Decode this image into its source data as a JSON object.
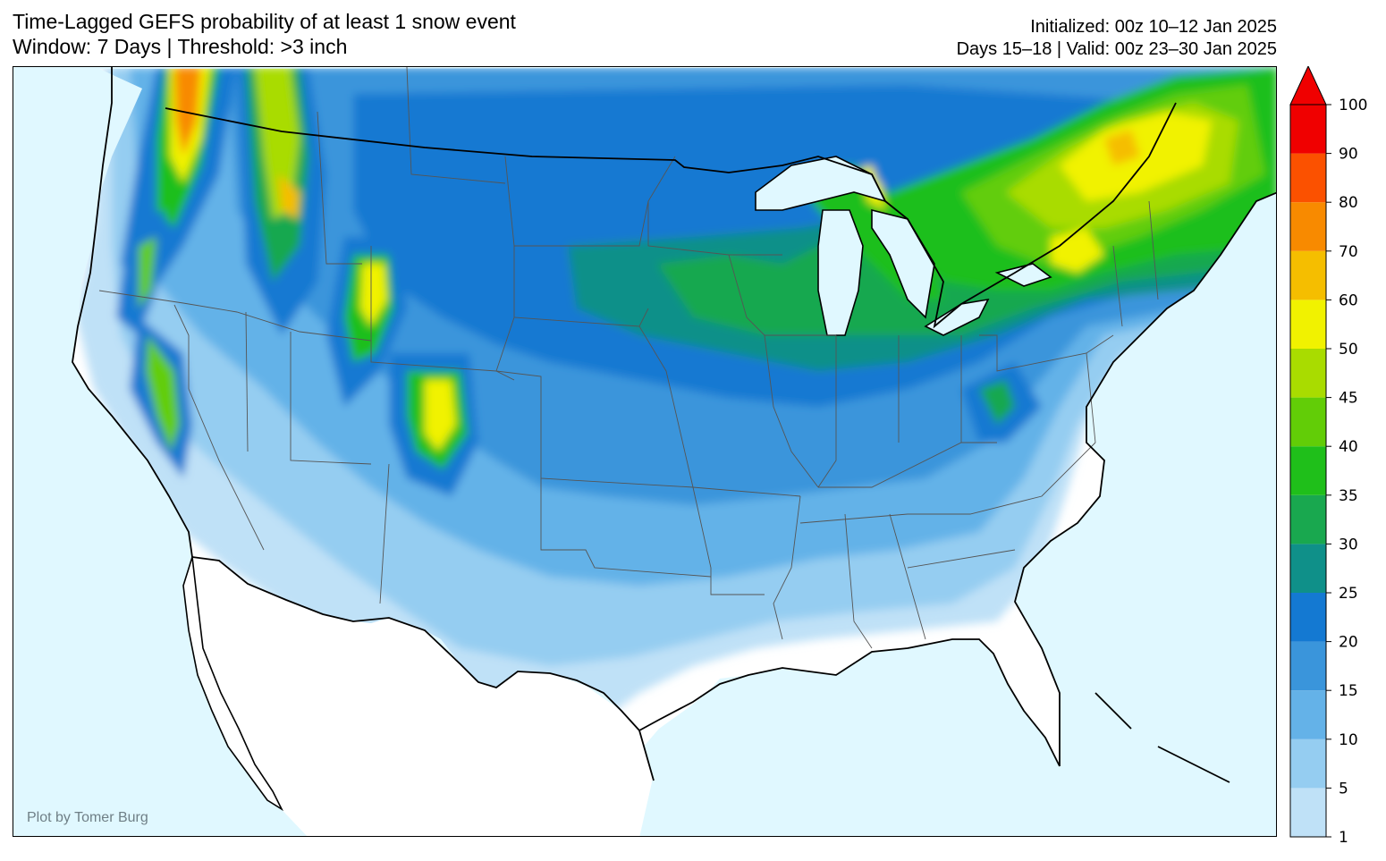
{
  "title": {
    "line1": "Time-Lagged GEFS probability of at least 1 snow event",
    "line2": "Window: 7 Days | Threshold: >3 inch"
  },
  "meta": {
    "line1": "Initialized: 00z 10–12 Jan 2025",
    "line2": "Days 15–18 | Valid: 00z 23–30 Jan 2025"
  },
  "credit": "Plot by Tomer Burg",
  "colorbar": {
    "levels": [
      {
        "value": "1",
        "color": "#bfe1f7"
      },
      {
        "value": "5",
        "color": "#95cdf1"
      },
      {
        "value": "10",
        "color": "#64b2e8"
      },
      {
        "value": "15",
        "color": "#3a95db"
      },
      {
        "value": "20",
        "color": "#1479d2"
      },
      {
        "value": "25",
        "color": "#0f9089"
      },
      {
        "value": "30",
        "color": "#19a84f"
      },
      {
        "value": "35",
        "color": "#1fbf1a"
      },
      {
        "value": "40",
        "color": "#62cd07"
      },
      {
        "value": "45",
        "color": "#a9dc00"
      },
      {
        "value": "50",
        "color": "#f1f200"
      },
      {
        "value": "60",
        "color": "#f5be00"
      },
      {
        "value": "70",
        "color": "#f88a00"
      },
      {
        "value": "80",
        "color": "#fb5100"
      },
      {
        "value": "90",
        "color": "#f00000"
      }
    ],
    "top_label": "100",
    "extend_color": "#f00000"
  },
  "colors": {
    "ocean": "#e0f8ff",
    "land": "#ffffff",
    "border": "#000000",
    "states": "#555555"
  }
}
